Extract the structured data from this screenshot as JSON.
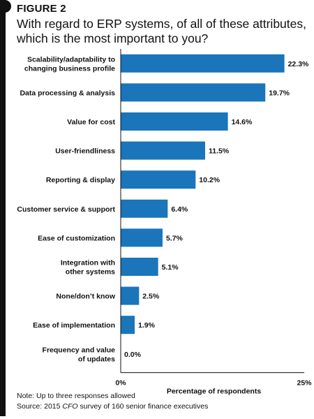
{
  "figure_label": "FIGURE 2",
  "title": "With regard to ERP systems, of all of these attributes, which is the most important to you?",
  "note": "Note: Up to three responses allowed",
  "source": {
    "prefix": "Source: 2015 ",
    "publication": "CFO",
    "suffix": " survey of 160 senior finance executives"
  },
  "colors": {
    "bar": "#1a75bb",
    "axis": "#111111"
  },
  "chart_data": {
    "type": "bar",
    "orientation": "horizontal",
    "categories": [
      "Scalability/adaptability to changing business profile",
      "Data processing & analysis",
      "Value for cost",
      "User-friendliness",
      "Reporting & display",
      "Customer service & support",
      "Ease of customization",
      "Integration with other systems",
      "None/don't know",
      "Ease of implementation",
      "Frequency and value of updates"
    ],
    "category_lines": [
      [
        "Scalability/adaptability to",
        "changing business profile"
      ],
      [
        "Data processing & analysis"
      ],
      [
        "Value for cost"
      ],
      [
        "User-friendliness"
      ],
      [
        "Reporting & display"
      ],
      [
        "Customer service & support"
      ],
      [
        "Ease of customization"
      ],
      [
        "Integration with",
        "other systems"
      ],
      [
        "None/don’t know"
      ],
      [
        "Ease of implementation"
      ],
      [
        "Frequency and value",
        "of updates"
      ]
    ],
    "values": [
      22.3,
      19.7,
      14.6,
      11.5,
      10.2,
      6.4,
      5.7,
      5.1,
      2.5,
      1.9,
      0.0
    ],
    "value_labels": [
      "22.3%",
      "19.7%",
      "14.6%",
      "11.5%",
      "10.2%",
      "6.4%",
      "5.7%",
      "5.1%",
      "2.5%",
      "1.9%",
      "0.0%"
    ],
    "xlim": [
      0,
      25
    ],
    "x_tick_labels": [
      "0%",
      "25%"
    ],
    "xlabel": "Percentage of respondents",
    "ylabel": "",
    "grid": false,
    "legend": "none"
  }
}
